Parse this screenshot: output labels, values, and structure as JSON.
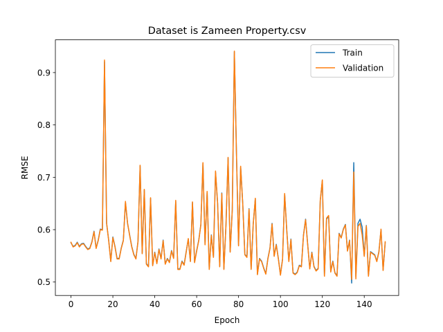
{
  "chart_data": {
    "type": "line",
    "title": "Dataset is Zameen Property.csv",
    "xlabel": "Epoch",
    "ylabel": "RMSE",
    "xlim": [
      -7.45,
      156.45
    ],
    "ylim": [
      0.4743,
      0.9625
    ],
    "xticks": [
      0,
      20,
      40,
      60,
      80,
      100,
      120,
      140
    ],
    "yticks": [
      0.5,
      0.6,
      0.7,
      0.8,
      0.9
    ],
    "ytick_labels": [
      "0.5",
      "0.6",
      "0.7",
      "0.8",
      "0.9"
    ],
    "legend_position": "upper right",
    "grid": false,
    "series": [
      {
        "name": "Train",
        "color": "#1f77b4",
        "values": [
          0.575,
          0.568,
          0.57,
          0.576,
          0.568,
          0.573,
          0.574,
          0.568,
          0.563,
          0.565,
          0.577,
          0.597,
          0.565,
          0.58,
          0.601,
          0.6,
          0.921,
          0.612,
          0.58,
          0.54,
          0.586,
          0.568,
          0.545,
          0.545,
          0.565,
          0.58,
          0.652,
          0.612,
          0.59,
          0.568,
          0.553,
          0.545,
          0.578,
          0.722,
          0.555,
          0.676,
          0.535,
          0.53,
          0.66,
          0.532,
          0.557,
          0.536,
          0.563,
          0.545,
          0.58,
          0.535,
          0.545,
          0.538,
          0.56,
          0.546,
          0.654,
          0.525,
          0.525,
          0.54,
          0.533,
          0.558,
          0.582,
          0.54,
          0.652,
          0.538,
          0.56,
          0.58,
          0.61,
          0.727,
          0.572,
          0.672,
          0.525,
          0.59,
          0.548,
          0.71,
          0.65,
          0.53,
          0.67,
          0.525,
          0.61,
          0.737,
          0.558,
          0.638,
          0.94,
          0.745,
          0.57,
          0.72,
          0.65,
          0.553,
          0.548,
          0.64,
          0.525,
          0.611,
          0.659,
          0.515,
          0.545,
          0.54,
          0.527,
          0.516,
          0.545,
          0.565,
          0.612,
          0.55,
          0.572,
          0.545,
          0.514,
          0.544,
          0.668,
          0.6,
          0.54,
          0.582,
          0.518,
          0.515,
          0.519,
          0.532,
          0.53,
          0.59,
          0.62,
          0.572,
          0.526,
          0.557,
          0.53,
          0.522,
          0.526,
          0.655,
          0.694,
          0.512,
          0.62,
          0.626,
          0.52,
          0.54,
          0.518,
          0.512,
          0.593,
          0.585,
          0.601,
          0.61,
          0.56,
          0.58,
          0.498,
          0.728,
          0.51,
          0.612,
          0.62,
          0.605,
          0.55,
          0.608,
          0.512,
          0.558,
          0.555,
          0.552,
          0.54,
          0.558,
          0.6,
          0.523,
          0.575
        ]
      },
      {
        "name": "Validation",
        "color": "#ff7f0e",
        "values": [
          0.576,
          0.567,
          0.569,
          0.575,
          0.567,
          0.572,
          0.573,
          0.567,
          0.562,
          0.564,
          0.576,
          0.596,
          0.564,
          0.579,
          0.6,
          0.599,
          0.924,
          0.613,
          0.579,
          0.539,
          0.585,
          0.567,
          0.544,
          0.544,
          0.564,
          0.579,
          0.654,
          0.613,
          0.589,
          0.567,
          0.552,
          0.544,
          0.577,
          0.723,
          0.554,
          0.677,
          0.534,
          0.529,
          0.661,
          0.531,
          0.556,
          0.535,
          0.562,
          0.544,
          0.579,
          0.534,
          0.544,
          0.537,
          0.559,
          0.545,
          0.656,
          0.524,
          0.524,
          0.539,
          0.532,
          0.557,
          0.583,
          0.539,
          0.653,
          0.537,
          0.559,
          0.579,
          0.609,
          0.728,
          0.571,
          0.673,
          0.524,
          0.589,
          0.547,
          0.712,
          0.651,
          0.529,
          0.669,
          0.524,
          0.609,
          0.738,
          0.557,
          0.637,
          0.941,
          0.746,
          0.569,
          0.721,
          0.649,
          0.552,
          0.547,
          0.639,
          0.524,
          0.61,
          0.66,
          0.514,
          0.544,
          0.539,
          0.526,
          0.515,
          0.544,
          0.564,
          0.611,
          0.549,
          0.571,
          0.544,
          0.513,
          0.543,
          0.669,
          0.599,
          0.539,
          0.581,
          0.517,
          0.514,
          0.518,
          0.531,
          0.529,
          0.589,
          0.619,
          0.571,
          0.525,
          0.556,
          0.529,
          0.521,
          0.525,
          0.656,
          0.695,
          0.511,
          0.622,
          0.627,
          0.519,
          0.539,
          0.517,
          0.511,
          0.592,
          0.584,
          0.6,
          0.609,
          0.559,
          0.579,
          0.505,
          0.71,
          0.506,
          0.606,
          0.612,
          0.59,
          0.549,
          0.607,
          0.511,
          0.557,
          0.554,
          0.551,
          0.539,
          0.557,
          0.601,
          0.522,
          0.577
        ]
      }
    ]
  }
}
